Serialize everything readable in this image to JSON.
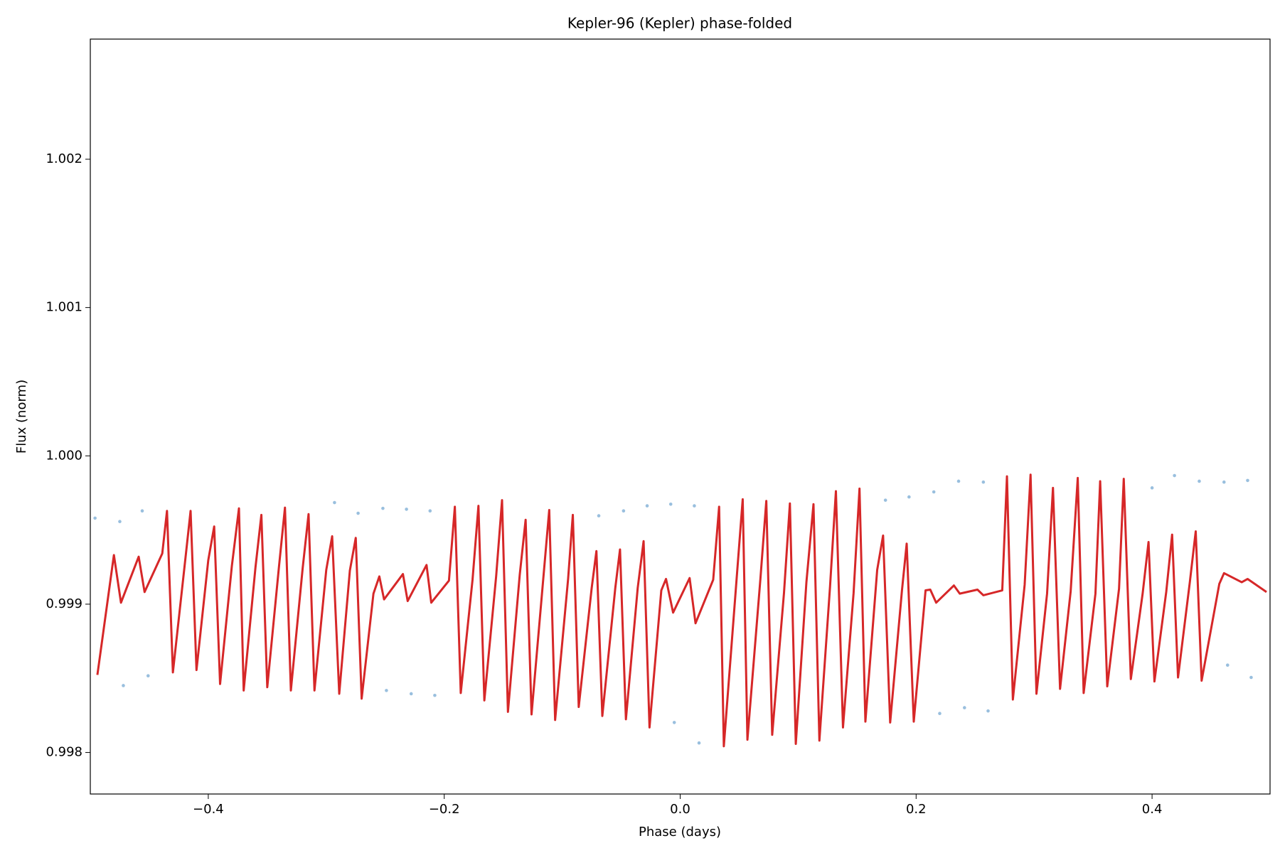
{
  "chart_data": {
    "type": "line",
    "title": "Kepler-96 (Kepler) phase-folded",
    "x_label": "Phase (days)",
    "y_label": "Flux (norm)",
    "xlim": [
      -0.5,
      0.5
    ],
    "ylim": [
      0.99772,
      1.00281
    ],
    "xticks": [
      {
        "value": -0.4,
        "label": "−0.4"
      },
      {
        "value": -0.2,
        "label": "−0.2"
      },
      {
        "value": 0,
        "label": "0.0"
      },
      0.2,
      0.4
    ],
    "yticks": [
      0.998,
      0.999,
      {
        "value": 1.0,
        "label": "1.000"
      },
      1.001,
      1.002
    ],
    "grid": false,
    "series": [
      {
        "type": "scatter",
        "color": "#7fafd6",
        "x": [
          -0.496,
          -0.475,
          -0.456,
          -0.472,
          -0.451,
          -0.293,
          -0.273,
          -0.252,
          -0.232,
          -0.212,
          -0.249,
          -0.228,
          -0.208,
          -0.069,
          -0.048,
          -0.028,
          -0.008,
          0.012,
          -0.005,
          0.016,
          0.174,
          0.194,
          0.215,
          0.236,
          0.257,
          0.22,
          0.241,
          0.261,
          0.4,
          0.419,
          0.44,
          0.461,
          0.481,
          0.464,
          0.484
        ],
        "values": [
          0.99958,
          0.999557,
          0.999629,
          0.998451,
          0.998517,
          0.999685,
          0.999613,
          0.999646,
          0.99964,
          0.999629,
          0.998418,
          0.998396,
          0.998385,
          0.999596,
          0.999629,
          0.999663,
          0.999674,
          0.999663,
          0.998202,
          0.998064,
          0.999701,
          0.999723,
          0.999757,
          0.999829,
          0.999823,
          0.998263,
          0.998302,
          0.99828,
          0.999784,
          0.999867,
          0.999829,
          0.999823,
          0.999834,
          0.998589,
          0.998506
        ]
      },
      {
        "type": "line",
        "color": "#d62728",
        "x": [
          -0.494,
          -0.48,
          -0.474,
          -0.459,
          -0.454,
          -0.439,
          -0.435,
          -0.43,
          -0.419,
          -0.415,
          -0.41,
          -0.4,
          -0.395,
          -0.39,
          -0.38,
          -0.374,
          -0.37,
          -0.36,
          -0.355,
          -0.35,
          -0.34,
          -0.335,
          -0.33,
          -0.32,
          -0.315,
          -0.31,
          -0.3,
          -0.295,
          -0.289,
          -0.28,
          -0.275,
          -0.27,
          -0.26,
          -0.255,
          -0.251,
          -0.235,
          -0.231,
          -0.215,
          -0.211,
          -0.196,
          -0.191,
          -0.186,
          -0.176,
          -0.171,
          -0.166,
          -0.156,
          -0.151,
          -0.146,
          -0.136,
          -0.131,
          -0.126,
          -0.116,
          -0.111,
          -0.106,
          -0.095,
          -0.091,
          -0.086,
          -0.075,
          -0.071,
          -0.066,
          -0.055,
          -0.051,
          -0.046,
          -0.036,
          -0.031,
          -0.026,
          -0.016,
          -0.012,
          -0.006,
          0.008,
          0.013,
          0.028,
          0.033,
          0.037,
          0.048,
          0.053,
          0.057,
          0.068,
          0.073,
          0.078,
          0.088,
          0.093,
          0.098,
          0.107,
          0.113,
          0.118,
          0.127,
          0.132,
          0.138,
          0.147,
          0.152,
          0.157,
          0.167,
          0.172,
          0.178,
          0.188,
          0.192,
          0.198,
          0.208,
          0.212,
          0.217,
          0.232,
          0.237,
          0.252,
          0.257,
          0.273,
          0.277,
          0.282,
          0.292,
          0.297,
          0.302,
          0.311,
          0.316,
          0.322,
          0.331,
          0.337,
          0.342,
          0.352,
          0.356,
          0.362,
          0.372,
          0.376,
          0.382,
          0.392,
          0.397,
          0.402,
          0.412,
          0.417,
          0.422,
          0.432,
          0.437,
          0.442,
          0.457,
          0.461,
          0.476,
          0.481,
          0.497
        ],
        "values": [
          0.998523,
          0.999331,
          0.99901,
          0.99932,
          0.999082,
          0.999342,
          0.999629,
          0.99854,
          0.999336,
          0.999629,
          0.998556,
          0.999297,
          0.999524,
          0.998462,
          0.999259,
          0.999646,
          0.998418,
          0.999248,
          0.999602,
          0.99844,
          0.999259,
          0.999651,
          0.998418,
          0.999242,
          0.999607,
          0.998418,
          0.999231,
          0.999458,
          0.998396,
          0.999226,
          0.999447,
          0.998363,
          0.999071,
          0.999187,
          0.999032,
          0.999203,
          0.999021,
          0.999264,
          0.99901,
          0.999159,
          0.999657,
          0.998401,
          0.999165,
          0.999663,
          0.998351,
          0.999187,
          0.999701,
          0.998274,
          0.999198,
          0.999569,
          0.998257,
          0.999176,
          0.999635,
          0.998219,
          0.99917,
          0.999602,
          0.998307,
          0.999109,
          0.999358,
          0.998246,
          0.999109,
          0.999369,
          0.998224,
          0.999109,
          0.999425,
          0.998169,
          0.999093,
          0.99917,
          0.998943,
          0.999176,
          0.998871,
          0.999165,
          0.999657,
          0.998042,
          0.999187,
          0.999707,
          0.998086,
          0.99917,
          0.999696,
          0.998119,
          0.999076,
          0.999679,
          0.998058,
          0.999148,
          0.999674,
          0.99808,
          0.999115,
          0.999762,
          0.998169,
          0.999076,
          0.999779,
          0.998208,
          0.999231,
          0.999463,
          0.998202,
          0.999093,
          0.999408,
          0.998208,
          0.999093,
          0.999098,
          0.99901,
          0.999126,
          0.999071,
          0.999098,
          0.99906,
          0.999093,
          0.999862,
          0.998357,
          0.999131,
          0.999873,
          0.998396,
          0.999071,
          0.999784,
          0.998429,
          0.999087,
          0.999851,
          0.998401,
          0.999071,
          0.999829,
          0.998446,
          0.999104,
          0.999845,
          0.998495,
          0.999071,
          0.999419,
          0.998479,
          0.999082,
          0.999469,
          0.998506,
          0.999148,
          0.999491,
          0.998484,
          0.999137,
          0.999209,
          0.999148,
          0.99917,
          0.999082
        ]
      }
    ]
  }
}
